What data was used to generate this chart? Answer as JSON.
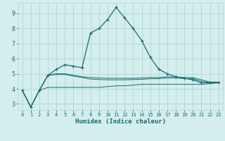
{
  "xlabel": "Humidex (Indice chaleur)",
  "bg_color": "#d4eeee",
  "grid_color": "#b8d8d8",
  "line_color": "#1a6b6b",
  "x_ticks": [
    0,
    1,
    2,
    3,
    4,
    5,
    6,
    7,
    8,
    9,
    10,
    11,
    12,
    13,
    14,
    15,
    16,
    17,
    18,
    19,
    20,
    21,
    22,
    23
  ],
  "y_ticks": [
    3,
    4,
    5,
    6,
    7,
    8,
    9
  ],
  "ylim": [
    2.6,
    9.7
  ],
  "xlim": [
    -0.5,
    23.5
  ],
  "series": [
    {
      "x": [
        0,
        1,
        2,
        3,
        4,
        5,
        6,
        7,
        8,
        9,
        10,
        11,
        12,
        13,
        14,
        15,
        16,
        17,
        18,
        19,
        20,
        21,
        22,
        23
      ],
      "y": [
        3.9,
        2.8,
        3.9,
        4.9,
        5.3,
        5.6,
        5.5,
        5.4,
        7.7,
        8.0,
        8.6,
        9.4,
        8.7,
        8.0,
        7.2,
        6.1,
        5.3,
        5.0,
        4.8,
        4.7,
        4.6,
        4.4,
        4.4,
        4.4
      ],
      "marker": true
    },
    {
      "x": [
        0,
        1,
        2,
        3,
        4,
        5,
        6,
        7,
        8,
        9,
        10,
        11,
        12,
        13,
        14,
        15,
        16,
        17,
        18,
        19,
        20,
        21,
        22,
        23
      ],
      "y": [
        3.9,
        2.8,
        3.9,
        4.9,
        5.0,
        5.0,
        4.9,
        4.8,
        4.75,
        4.72,
        4.7,
        4.7,
        4.7,
        4.7,
        4.72,
        4.75,
        4.75,
        4.8,
        4.8,
        4.75,
        4.75,
        4.6,
        4.45,
        4.45
      ],
      "marker": false
    },
    {
      "x": [
        0,
        1,
        2,
        3,
        4,
        5,
        6,
        7,
        8,
        9,
        10,
        11,
        12,
        13,
        14,
        15,
        16,
        17,
        18,
        19,
        20,
        21,
        22,
        23
      ],
      "y": [
        3.9,
        2.8,
        3.9,
        4.9,
        4.95,
        4.95,
        4.85,
        4.75,
        4.65,
        4.62,
        4.6,
        4.6,
        4.6,
        4.62,
        4.63,
        4.67,
        4.68,
        4.72,
        4.72,
        4.68,
        4.68,
        4.5,
        4.42,
        4.42
      ],
      "marker": false
    },
    {
      "x": [
        0,
        1,
        2,
        3,
        4,
        5,
        6,
        7,
        8,
        9,
        10,
        11,
        12,
        13,
        14,
        15,
        16,
        17,
        18,
        19,
        20,
        21,
        22,
        23
      ],
      "y": [
        3.9,
        2.8,
        3.9,
        4.1,
        4.1,
        4.1,
        4.1,
        4.1,
        4.1,
        4.1,
        4.15,
        4.2,
        4.2,
        4.25,
        4.3,
        4.3,
        4.3,
        4.3,
        4.3,
        4.3,
        4.3,
        4.3,
        4.35,
        4.4
      ],
      "marker": false
    }
  ]
}
